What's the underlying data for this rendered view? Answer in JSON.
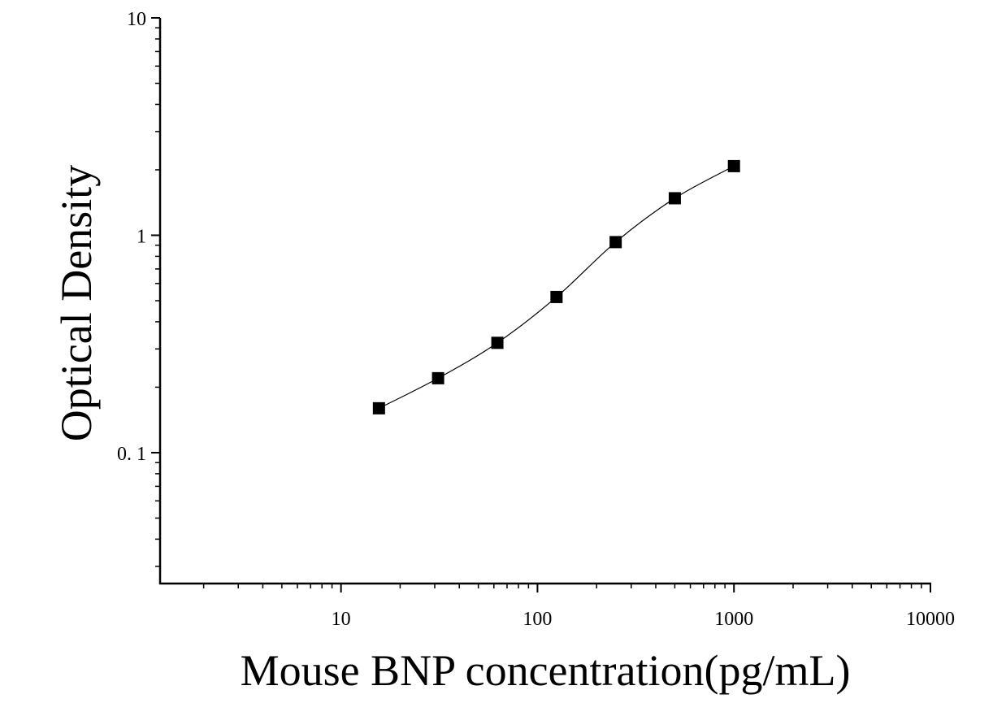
{
  "chart_data": {
    "type": "scatter",
    "title": "",
    "xlabel": "Mouse BNP concentration(pg/mL)",
    "ylabel": "Optical Density",
    "x_scale": "log",
    "y_scale": "log",
    "xlim": [
      1.2,
      10000
    ],
    "ylim": [
      0.025,
      10
    ],
    "x_ticks": [
      {
        "value": 10,
        "label": "10"
      },
      {
        "value": 100,
        "label": "100"
      },
      {
        "value": 1000,
        "label": "1000"
      },
      {
        "value": 10000,
        "label": "10000"
      }
    ],
    "y_ticks": [
      {
        "value": 0.1,
        "label": "0. 1"
      },
      {
        "value": 1,
        "label": "1"
      },
      {
        "value": 10,
        "label": "10"
      }
    ],
    "grid": false,
    "legend": "none",
    "series": [
      {
        "marker": "square",
        "color": "#000000",
        "fit_curve": true,
        "x": [
          15.6,
          31.2,
          62.5,
          125,
          250,
          500,
          1000
        ],
        "y": [
          0.16,
          0.22,
          0.32,
          0.52,
          0.93,
          1.48,
          2.08
        ]
      }
    ]
  }
}
